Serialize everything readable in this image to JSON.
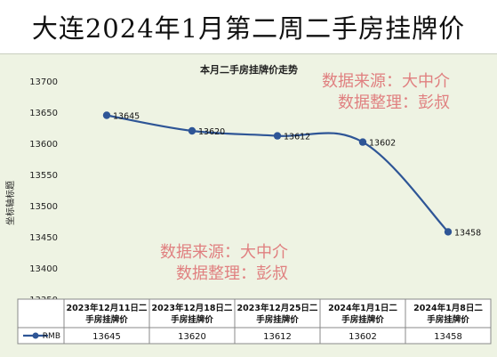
{
  "page": {
    "title": "大连2024年1月第二周二手房挂牌价"
  },
  "watermark": {
    "line1": "数据来源：大中介",
    "line2": "数据整理：彭叔"
  },
  "chart_data": {
    "type": "line",
    "title": "本月二手房挂牌价走势",
    "ylabel": "坐标轴标题",
    "xlabel": "",
    "ylim": [
      13350,
      13700
    ],
    "yticks": [
      13350,
      13400,
      13450,
      13500,
      13550,
      13600,
      13650,
      13700
    ],
    "grid": false,
    "categories": [
      "2023年12月11日二手房挂牌价",
      "2023年12月18日二手房挂牌价",
      "2023年12月25日二手房挂牌价",
      "2024年1月1日二手房挂牌价",
      "2024年1月8日二手房挂牌价"
    ],
    "series": [
      {
        "name": "RMB",
        "values": [
          13645,
          13620,
          13612,
          13602,
          13458
        ]
      }
    ],
    "table": true,
    "line_color": "#2e5596"
  }
}
